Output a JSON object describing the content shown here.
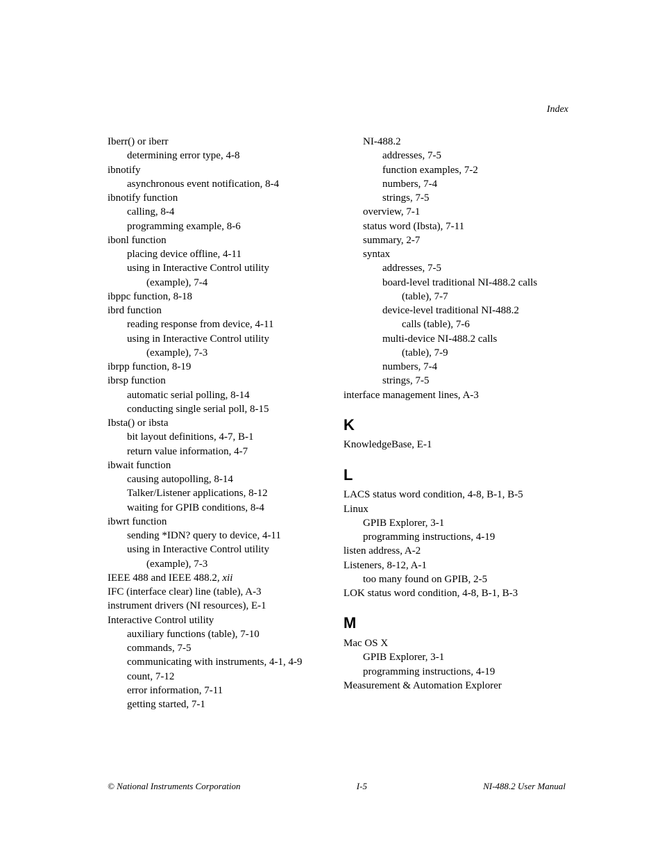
{
  "header": {
    "label": "Index"
  },
  "footer": {
    "left": "© National Instruments Corporation",
    "center": "I-5",
    "right": "NI-488.2 User Manual"
  },
  "leftColumn": [
    {
      "text": "Iberr() or iberr",
      "lvl": 0
    },
    {
      "text": "determining error type, 4-8",
      "lvl": 1
    },
    {
      "text": "ibnotify",
      "lvl": 0
    },
    {
      "text": "asynchronous event notification, 8-4",
      "lvl": 1
    },
    {
      "text": "ibnotify function",
      "lvl": 0
    },
    {
      "text": "calling, 8-4",
      "lvl": 1
    },
    {
      "text": "programming example, 8-6",
      "lvl": 1
    },
    {
      "text": "ibonl function",
      "lvl": 0
    },
    {
      "text": "placing device offline, 4-11",
      "lvl": 1
    },
    {
      "text": "using in Interactive Control utility",
      "lvl": 1
    },
    {
      "text": "(example), 7-4",
      "lvl": 2
    },
    {
      "text": "ibppc function, 8-18",
      "lvl": 0
    },
    {
      "text": "ibrd function",
      "lvl": 0
    },
    {
      "text": "reading response from device, 4-11",
      "lvl": 1
    },
    {
      "text": "using in Interactive Control utility",
      "lvl": 1
    },
    {
      "text": "(example), 7-3",
      "lvl": 2
    },
    {
      "text": "ibrpp function, 8-19",
      "lvl": 0
    },
    {
      "text": "ibrsp function",
      "lvl": 0
    },
    {
      "text": "automatic serial polling, 8-14",
      "lvl": 1
    },
    {
      "text": "conducting single serial poll, 8-15",
      "lvl": 1
    },
    {
      "text": "Ibsta() or ibsta",
      "lvl": 0
    },
    {
      "text": "bit layout definitions, 4-7, B-1",
      "lvl": 1
    },
    {
      "text": "return value information, 4-7",
      "lvl": 1
    },
    {
      "text": "ibwait function",
      "lvl": 0
    },
    {
      "text": "causing autopolling, 8-14",
      "lvl": 1
    },
    {
      "text": "Talker/Listener applications, 8-12",
      "lvl": 1
    },
    {
      "text": "waiting for GPIB conditions, 8-4",
      "lvl": 1
    },
    {
      "text": "ibwrt function",
      "lvl": 0
    },
    {
      "text": "sending *IDN? query to device, 4-11",
      "lvl": 1
    },
    {
      "text": "using in Interactive Control utility",
      "lvl": 1
    },
    {
      "text": "(example), 7-3",
      "lvl": 2
    },
    {
      "text": "IEEE 488 and IEEE 488.2, ",
      "tail": "xii",
      "tailItalic": true,
      "lvl": 0
    },
    {
      "text": "IFC (interface clear) line (table), A-3",
      "lvl": 0
    },
    {
      "text": "instrument drivers (NI resources), E-1",
      "lvl": 0
    },
    {
      "text": "Interactive Control utility",
      "lvl": 0
    },
    {
      "text": "auxiliary functions (table), 7-10",
      "lvl": 1
    },
    {
      "text": "commands, 7-5",
      "lvl": 1
    },
    {
      "text": "communicating with instruments, 4-1, 4-9",
      "lvl": 1
    },
    {
      "text": "count, 7-12",
      "lvl": 1
    },
    {
      "text": "error information, 7-11",
      "lvl": 1
    },
    {
      "text": "getting started, 7-1",
      "lvl": 1
    }
  ],
  "rightColumn": [
    {
      "text": "NI-488.2",
      "lvl": 1
    },
    {
      "text": "addresses, 7-5",
      "lvl": 2
    },
    {
      "text": "function examples, 7-2",
      "lvl": 2
    },
    {
      "text": "numbers, 7-4",
      "lvl": 2
    },
    {
      "text": "strings, 7-5",
      "lvl": 2
    },
    {
      "text": "overview, 7-1",
      "lvl": 1
    },
    {
      "text": "status word (Ibsta), 7-11",
      "lvl": 1
    },
    {
      "text": "summary, 2-7",
      "lvl": 1
    },
    {
      "text": "syntax",
      "lvl": 1
    },
    {
      "text": "addresses, 7-5",
      "lvl": 2
    },
    {
      "text": "board-level traditional NI-488.2 calls",
      "lvl": 2
    },
    {
      "text": "(table), 7-7",
      "lvl": 3
    },
    {
      "text": "device-level traditional NI-488.2",
      "lvl": 2
    },
    {
      "text": "calls (table), 7-6",
      "lvl": 3
    },
    {
      "text": "multi-device NI-488.2 calls",
      "lvl": 2
    },
    {
      "text": "(table), 7-9",
      "lvl": 3
    },
    {
      "text": "numbers, 7-4",
      "lvl": 2
    },
    {
      "text": "strings, 7-5",
      "lvl": 2
    },
    {
      "text": "interface management lines, A-3",
      "lvl": 0
    },
    {
      "section": "K"
    },
    {
      "text": "KnowledgeBase, E-1",
      "lvl": 0
    },
    {
      "section": "L"
    },
    {
      "text": "LACS status word condition, 4-8, B-1, B-5",
      "lvl": 0
    },
    {
      "text": "Linux",
      "lvl": 0
    },
    {
      "text": "GPIB Explorer, 3-1",
      "lvl": 1
    },
    {
      "text": "programming instructions, 4-19",
      "lvl": 1
    },
    {
      "text": "listen address, A-2",
      "lvl": 0
    },
    {
      "text": "Listeners, 8-12, A-1",
      "lvl": 0
    },
    {
      "text": "too many found on GPIB, 2-5",
      "lvl": 1
    },
    {
      "text": "LOK status word condition, 4-8, B-1, B-3",
      "lvl": 0
    },
    {
      "section": "M"
    },
    {
      "text": "Mac OS X",
      "lvl": 0
    },
    {
      "text": "GPIB Explorer, 3-1",
      "lvl": 1
    },
    {
      "text": "programming instructions, 4-19",
      "lvl": 1
    },
    {
      "text": "Measurement & Automation Explorer",
      "lvl": 0
    }
  ]
}
